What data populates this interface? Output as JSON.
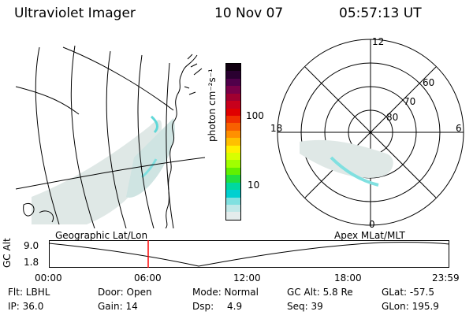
{
  "header": {
    "title": "Ultraviolet Imager",
    "date": "10 Nov 07",
    "time": "05:57:13 UT"
  },
  "colorbar": {
    "unit_label": "photon cm⁻²s⁻¹",
    "ticks": [
      "100",
      "10"
    ],
    "colors": [
      "#100010",
      "#2a0030",
      "#50004a",
      "#7a0048",
      "#a00030",
      "#c8001c",
      "#e00000",
      "#f03000",
      "#f86000",
      "#ff9000",
      "#ffc000",
      "#fff000",
      "#d8ff00",
      "#a0ff00",
      "#60f000",
      "#20e040",
      "#00d8a0",
      "#00d0d0",
      "#80e0e0",
      "#c0e8e8",
      "#e4ecec"
    ]
  },
  "left_map": {
    "label": "Geographic Lat/Lon"
  },
  "right_map": {
    "label": "Apex MLat/MLT",
    "mlt_labels": {
      "top": "12",
      "left": "18",
      "right": "6",
      "bottom": "0"
    },
    "lat_labels": [
      "60",
      "70",
      "80"
    ]
  },
  "altitude_plot": {
    "ylabel": "GC Alt",
    "yticks": [
      "9.0",
      "1.8"
    ],
    "xticks": [
      "00:00",
      "06:00",
      "12:00",
      "18:00",
      "23:59"
    ],
    "current_time_fraction": 0.248,
    "marker_color": "#ff0000"
  },
  "footer": {
    "row1": {
      "flt": "Flt: LBHL",
      "door": "Door: Open",
      "mode": "Mode: Normal",
      "gcalt": "GC Alt: 5.8 Re",
      "glat": "GLat: -57.5"
    },
    "row2": {
      "ip": "IP: 36.0",
      "gain": "Gain: 14",
      "dsp": "Dsp:",
      "dsp_val": "4.9",
      "seq": "Seq: 39",
      "glon": "GLon: 195.9"
    }
  }
}
